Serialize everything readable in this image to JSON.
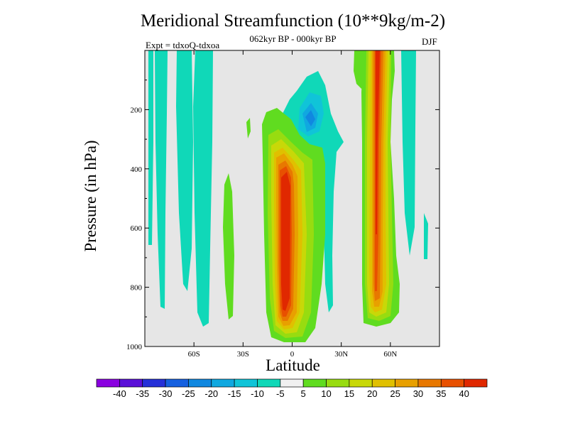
{
  "header": {
    "title": "Meridional Streamfunction (10**9kg/m-2)",
    "subtitle": "062kyr BP - 000kyr BP",
    "left_label": "Expt = tdxoQ-tdxoa",
    "right_label": "DJF"
  },
  "chart_data": {
    "type": "heatmap",
    "title": "Meridional Streamfunction (10**9kg/m-2)",
    "subtitle": "062kyr BP - 000kyr BP",
    "xlabel": "Latitude",
    "ylabel": "Pressure (in hPa)",
    "xlim": [
      -90,
      90
    ],
    "ylim": [
      0,
      1000
    ],
    "y_inverted": true,
    "x_ticks": [
      {
        "value": -60,
        "label": "60S"
      },
      {
        "value": -30,
        "label": "30S"
      },
      {
        "value": 0,
        "label": "0"
      },
      {
        "value": 30,
        "label": "30N"
      },
      {
        "value": 60,
        "label": "60N"
      }
    ],
    "y_ticks": [
      {
        "value": 200,
        "label": "200"
      },
      {
        "value": 400,
        "label": "400"
      },
      {
        "value": 600,
        "label": "600"
      },
      {
        "value": 800,
        "label": "800"
      },
      {
        "value": 1000,
        "label": "1000"
      }
    ],
    "background_color": "#e6e6e6",
    "colorbar": {
      "levels": [
        "-40",
        "-35",
        "-30",
        "-25",
        "-20",
        "-15",
        "-10",
        "-5",
        "5",
        "10",
        "15",
        "20",
        "25",
        "30",
        "35",
        "40"
      ],
      "colors": [
        "#8a00e0",
        "#5a10d8",
        "#2530d8",
        "#1560e0",
        "#1088e0",
        "#10a8e0",
        "#10c4d8",
        "#10d8b8",
        "#f0f0f0",
        "#60dc20",
        "#98dc10",
        "#c8d808",
        "#e0c000",
        "#e8a000",
        "#e87800",
        "#e85000",
        "#e02800"
      ]
    },
    "features": [
      {
        "name": "positive cell",
        "lat_center": -1,
        "p_top": 250,
        "p_bottom": 1000,
        "peak": 40
      },
      {
        "name": "negative cell",
        "lat_center": 8,
        "p_top": 100,
        "p_bottom": 300,
        "min": -20
      },
      {
        "name": "positive cell",
        "lat_center": 55,
        "p_top": 0,
        "p_bottom": 950,
        "peak": 40
      },
      {
        "name": "weak negative band",
        "lat_center": -72,
        "p_top": 0,
        "p_bottom": 900,
        "min": -10
      },
      {
        "name": "weak negative band",
        "lat_center": -52,
        "p_top": 0,
        "p_bottom": 950,
        "min": -10
      },
      {
        "name": "weak negative band",
        "lat_center": 72,
        "p_top": 0,
        "p_bottom": 850,
        "min": -10
      }
    ]
  }
}
